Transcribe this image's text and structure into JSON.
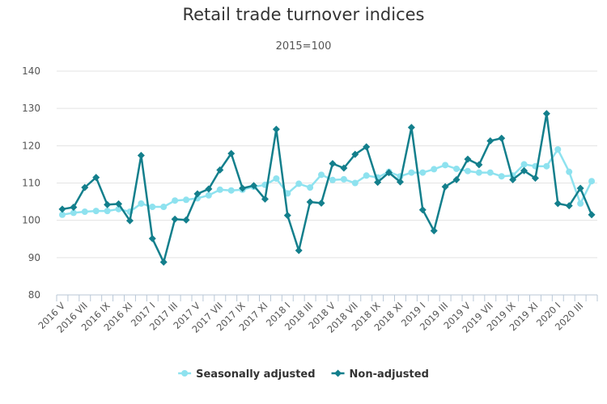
{
  "chart_data": {
    "type": "line",
    "title": "Retail trade turnover indices",
    "subtitle": "2015=100",
    "xlabel": "",
    "ylabel": "",
    "ylim": [
      80,
      140
    ],
    "yticks": [
      80,
      90,
      100,
      110,
      120,
      130,
      140
    ],
    "grid": true,
    "legend": "bottom-center",
    "x": [
      "2016 V",
      "2016 VI",
      "2016 VII",
      "2016 VIII",
      "2016 IX",
      "2016 X",
      "2016 XI",
      "2016 XII",
      "2017 I",
      "2017 II",
      "2017 III",
      "2017 IV",
      "2017 V",
      "2017 VI",
      "2017 VII",
      "2017 VIII",
      "2017 IX",
      "2017 X",
      "2017 XI",
      "2017 XII",
      "2018 I",
      "2018 II",
      "2018 III",
      "2018 IV",
      "2018 V",
      "2018 VI",
      "2018 VII",
      "2018 VIII",
      "2018 IX",
      "2018 X",
      "2018 XI",
      "2018 XII",
      "2019 I",
      "2019 II",
      "2019 III",
      "2019 IV",
      "2019 V",
      "2019 VI",
      "2019 VII",
      "2019 VIII",
      "2019 IX",
      "2019 X",
      "2019 XI",
      "2019 XII",
      "2020 I",
      "2020 II",
      "2020 III",
      "2020 IV"
    ],
    "x_tick_labels": [
      "2016 V",
      "2016 VII",
      "2016 IX",
      "2016 XI",
      "2017 I",
      "2017 III",
      "2017 V",
      "2017 VII",
      "2017 IX",
      "2017 XI",
      "2018 I",
      "2018 III",
      "2018 V",
      "2018 VII",
      "2018 IX",
      "2018 XI",
      "2019 I",
      "2019 III",
      "2019 V",
      "2019 VII",
      "2019 IX",
      "2019 XI",
      "2020 I",
      "2020 III"
    ],
    "series": [
      {
        "name": "Seasonally adjusted",
        "color": "#8ee2ef",
        "marker": "circle",
        "values": [
          101.5,
          102.0,
          102.3,
          102.5,
          102.5,
          103.0,
          102.3,
          104.5,
          103.6,
          103.6,
          105.3,
          105.5,
          105.9,
          106.7,
          108.2,
          108.0,
          108.2,
          109.0,
          109.5,
          111.2,
          107.2,
          109.8,
          108.8,
          112.2,
          110.8,
          111.0,
          110.0,
          112.0,
          111.5,
          113.0,
          111.8,
          112.8,
          112.8,
          113.7,
          114.8,
          113.8,
          113.2,
          112.8,
          112.8,
          111.8,
          112.0,
          115.0,
          114.5,
          114.5,
          119.0,
          113.0,
          104.5,
          110.5
        ]
      },
      {
        "name": "Non-adjusted",
        "color": "#137f8c",
        "marker": "diamond",
        "values": [
          103.0,
          103.5,
          108.8,
          111.5,
          104.2,
          104.4,
          99.9,
          117.4,
          95.1,
          88.8,
          100.3,
          100.1,
          107.1,
          108.4,
          113.5,
          117.9,
          108.6,
          109.3,
          105.7,
          124.4,
          101.3,
          91.9,
          104.9,
          104.6,
          115.2,
          114.0,
          117.7,
          119.7,
          110.2,
          112.8,
          110.3,
          124.9,
          102.8,
          97.2,
          109.0,
          110.9,
          116.4,
          114.9,
          121.3,
          122.0,
          110.9,
          113.3,
          111.3,
          128.6,
          104.5,
          103.9,
          108.6,
          101.5
        ]
      }
    ]
  }
}
